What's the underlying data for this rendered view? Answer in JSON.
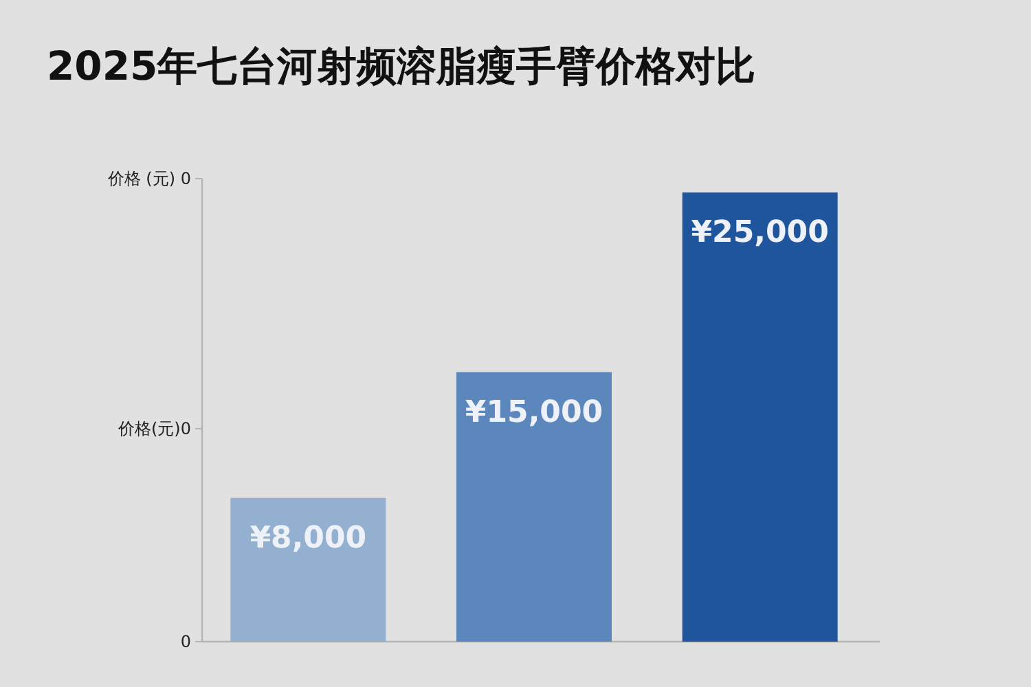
{
  "chart_data": {
    "type": "bar",
    "title": "2025年七台河射频溶脂瘦手臂价格对比",
    "categories": [
      null,
      null,
      null
    ],
    "values": [
      8000,
      15000,
      25000
    ],
    "colors": [
      "#93b0d1",
      "#5b87bc",
      "#1f559c"
    ],
    "value_labels": [
      "¥8,000",
      "¥15,000",
      "¥25,000"
    ],
    "annotations": [
      "价格 (元) 0",
      "价格(元)0",
      "0"
    ]
  }
}
